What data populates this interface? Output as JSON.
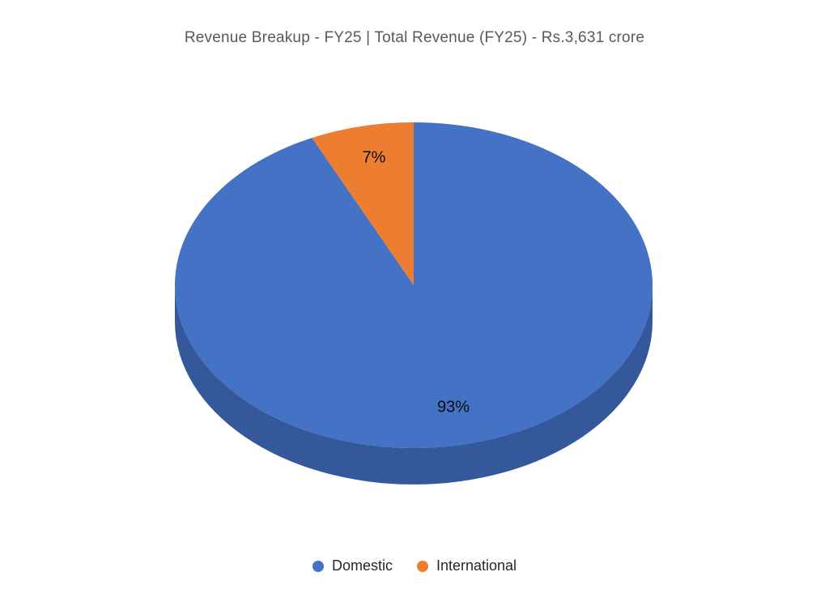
{
  "chart_data": {
    "type": "pie",
    "style": "3d",
    "title": "Revenue Breakup - FY25 | Total Revenue (FY25) - Rs.3,631 crore",
    "fiscal_year": "FY25",
    "total_revenue": "Rs.3,631 crore",
    "unit": "percent",
    "start_angle_deg": 0,
    "slices": [
      {
        "name": "Domestic",
        "value": 93,
        "label": "93%",
        "color": "#4472C4",
        "side_color": "#35589B"
      },
      {
        "name": "International",
        "value": 7,
        "label": "7%",
        "color": "#ED7D31"
      }
    ],
    "legend": {
      "position": "bottom",
      "items": [
        "Domestic",
        "International"
      ]
    },
    "colors": {
      "title_text": "#595959",
      "data_label_text": "#0d0d0d",
      "legend_text": "#262626",
      "background": "#FFFFFF"
    }
  }
}
